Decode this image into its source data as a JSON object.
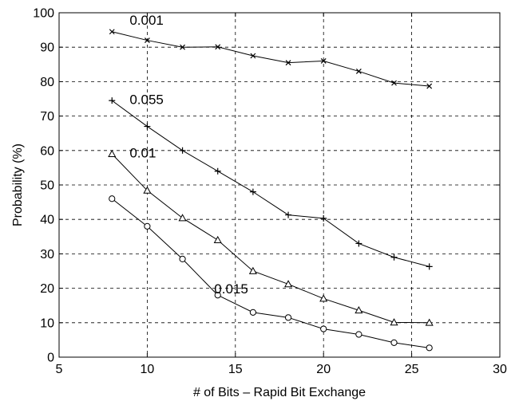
{
  "chart_data": {
    "type": "line",
    "title": "",
    "xlabel": "# of Bits – Rapid Bit Exchange",
    "ylabel": "Probability (%)",
    "xlim": [
      5,
      30
    ],
    "ylim": [
      0,
      100
    ],
    "xticks": [
      5,
      10,
      15,
      20,
      25,
      30
    ],
    "yticks": [
      0,
      10,
      20,
      30,
      40,
      50,
      60,
      70,
      80,
      90,
      100
    ],
    "grid": true,
    "legend": "none",
    "x": [
      8,
      10,
      12,
      14,
      16,
      18,
      20,
      22,
      24,
      26
    ],
    "series": [
      {
        "name": "0.001",
        "marker": "x",
        "values": [
          94.5,
          92,
          90,
          90.1,
          87.5,
          85.5,
          86,
          83,
          79.6,
          78.7
        ],
        "label_at": [
          9.0,
          96.5
        ]
      },
      {
        "name": "0.055",
        "marker": "+",
        "values": [
          74.5,
          67,
          60,
          54,
          48,
          41.3,
          40.3,
          33,
          29,
          26.3
        ],
        "label_at": [
          9.0,
          73.5
        ]
      },
      {
        "name": "0.01",
        "marker": "triangle",
        "values": [
          59,
          48.4,
          40.4,
          34,
          25,
          21.2,
          17,
          13.6,
          10.1,
          10
        ],
        "label_at": [
          9.0,
          58
        ]
      },
      {
        "name": "0.015",
        "marker": "circle",
        "values": [
          46,
          38,
          28.5,
          18,
          13,
          11.5,
          8.2,
          6.6,
          4.2,
          2.7
        ],
        "label_at": [
          13.8,
          18.5
        ]
      }
    ]
  }
}
